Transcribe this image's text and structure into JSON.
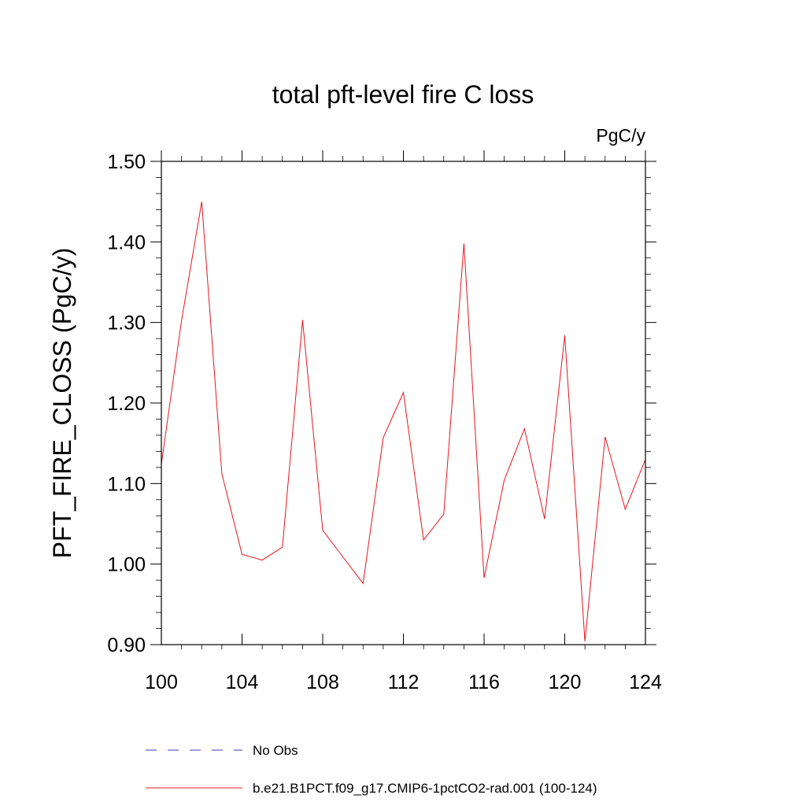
{
  "chart_data": {
    "type": "line",
    "title": "total pft-level fire C loss",
    "units": "PgC/y",
    "ylabel": "PFT_FIRE_CLOSS  (PgC/y)",
    "xlabel": "",
    "xlim": [
      100,
      124
    ],
    "ylim": [
      0.9,
      1.5
    ],
    "x_ticks": [
      100,
      104,
      108,
      112,
      116,
      120,
      124
    ],
    "x_tick_labels": [
      "100",
      "104",
      "108",
      "112",
      "116",
      "120",
      "124"
    ],
    "y_ticks": [
      0.9,
      1.0,
      1.1,
      1.2,
      1.3,
      1.4,
      1.5
    ],
    "y_tick_labels": [
      "0.90",
      "1.00",
      "1.10",
      "1.20",
      "1.30",
      "1.40",
      "1.50"
    ],
    "grid": false,
    "legend_placement": "bottom",
    "series": [
      {
        "name": "b.e21.B1PCT.f09_g17.CMIP6-1pctCO2-rad.001 (100-124)",
        "color": "#e8141e",
        "style": "solid",
        "x": [
          100,
          101,
          102,
          103,
          104,
          105,
          106,
          107,
          108,
          109,
          110,
          111,
          112,
          113,
          114,
          115,
          116,
          117,
          118,
          119,
          120,
          121,
          122,
          123,
          124
        ],
        "y": [
          1.124,
          1.302,
          1.45,
          1.112,
          1.012,
          1.005,
          1.021,
          1.303,
          1.042,
          1.009,
          0.976,
          1.157,
          1.213,
          1.03,
          1.062,
          1.398,
          0.983,
          1.104,
          1.168,
          1.056,
          1.284,
          0.904,
          1.158,
          1.068,
          1.13
        ]
      }
    ],
    "legend": [
      {
        "label": "No Obs",
        "color": "#3b3bb0",
        "style": "dashed"
      },
      {
        "label": "b.e21.B1PCT.f09_g17.CMIP6-1pctCO2-rad.001 (100-124)",
        "color": "#e8141e",
        "style": "solid"
      }
    ]
  }
}
